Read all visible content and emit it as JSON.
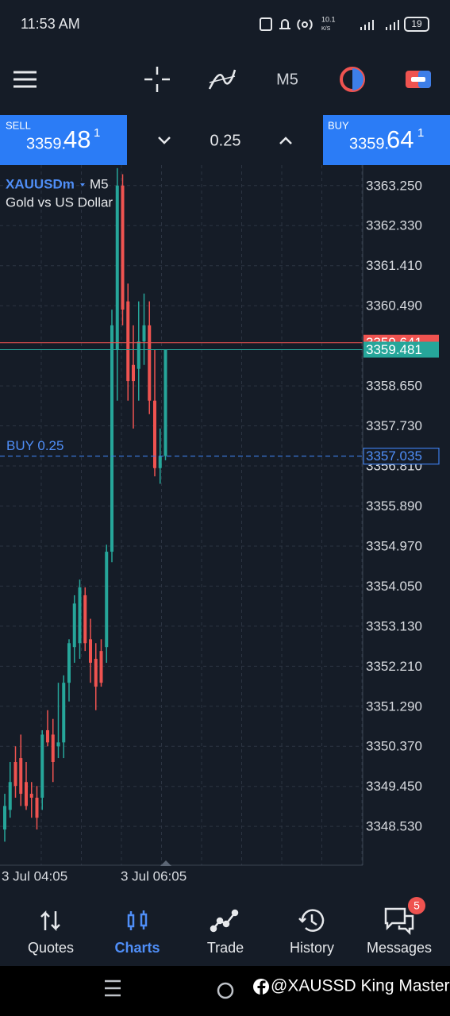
{
  "status_bar": {
    "time": "11:53 AM",
    "speed": "10.1",
    "speed_unit": "K/S",
    "battery": "19"
  },
  "toolbar": {
    "timeframe": "M5"
  },
  "trade_panel": {
    "sell_label": "SELL",
    "sell_price_main": "3359.",
    "sell_price_big": "48",
    "sell_price_sup": "1",
    "volume": "0.25",
    "buy_label": "BUY",
    "buy_price_main": "3359.",
    "buy_price_big": "64",
    "buy_price_sup": "1"
  },
  "chart_data": {
    "type": "candlestick",
    "symbol": "XAUUSDm",
    "timeframe": "M5",
    "description": "Gold vs US Dollar",
    "up_color": "#26a69a",
    "down_color": "#ef5350",
    "candles": [
      [
        3348.46,
        3349.28,
        3348.18,
        3349.0
      ],
      [
        3348.91,
        3350.01,
        3348.73,
        3349.55
      ],
      [
        3350.01,
        3350.37,
        3349.19,
        3349.46
      ],
      [
        3350.1,
        3350.64,
        3349.0,
        3349.28
      ],
      [
        3349.55,
        3350.01,
        3348.91,
        3349.0
      ],
      [
        3349.28,
        3349.55,
        3348.73,
        3349.19
      ],
      [
        3349.19,
        3349.46,
        3348.46,
        3348.73
      ],
      [
        3349.19,
        3350.74,
        3348.91,
        3350.64
      ],
      [
        3350.74,
        3351.2,
        3350.37,
        3350.46
      ],
      [
        3350.64,
        3351.0,
        3349.55,
        3350.01
      ],
      [
        3350.37,
        3351.83,
        3350.1,
        3350.46
      ],
      [
        3350.46,
        3352.0,
        3350.1,
        3351.83
      ],
      [
        3351.83,
        3352.83,
        3351.4,
        3352.74
      ],
      [
        3352.65,
        3353.84,
        3352.29,
        3353.65
      ],
      [
        3352.74,
        3354.2,
        3352.38,
        3354.02
      ],
      [
        3353.84,
        3354.02,
        3352.56,
        3352.74
      ],
      [
        3352.83,
        3353.3,
        3351.83,
        3352.29
      ],
      [
        3352.38,
        3352.74,
        3351.2,
        3351.74
      ],
      [
        3352.56,
        3352.83,
        3351.74,
        3351.83
      ],
      [
        3352.65,
        3355.0,
        3352.29,
        3354.84
      ],
      [
        3354.84,
        3360.4,
        3354.6,
        3360.04
      ],
      [
        3359.49,
        3363.65,
        3358.31,
        3363.25
      ],
      [
        3363.25,
        3363.51,
        3360.04,
        3360.4
      ],
      [
        3360.59,
        3361.0,
        3358.31,
        3358.76
      ],
      [
        3359.13,
        3360.04,
        3357.67,
        3358.76
      ],
      [
        3359.04,
        3360.59,
        3358.31,
        3359.67
      ],
      [
        3359.67,
        3360.77,
        3359.13,
        3360.04
      ],
      [
        3360.04,
        3360.59,
        3358.0,
        3358.31
      ],
      [
        3358.31,
        3359.49,
        3356.57,
        3356.76
      ],
      [
        3356.76,
        3357.67,
        3356.4,
        3357.04
      ],
      [
        3357.04,
        3359.49,
        3356.94,
        3359.48
      ]
    ],
    "ylim": [
      3347.64,
      3363.72
    ],
    "yticks": [
      {
        "value": 3363.25,
        "label": "3363.250"
      },
      {
        "value": 3362.33,
        "label": "3362.330"
      },
      {
        "value": 3361.41,
        "label": "3361.410"
      },
      {
        "value": 3360.49,
        "label": "3360.490"
      },
      {
        "value": 3358.65,
        "label": "3358.650"
      },
      {
        "value": 3357.73,
        "label": "3357.730"
      },
      {
        "value": 3356.81,
        "label": "3356.810"
      },
      {
        "value": 3355.89,
        "label": "3355.890"
      },
      {
        "value": 3354.97,
        "label": "3354.970"
      },
      {
        "value": 3354.05,
        "label": "3354.050"
      },
      {
        "value": 3353.13,
        "label": "3353.130"
      },
      {
        "value": 3352.21,
        "label": "3352.210"
      },
      {
        "value": 3351.29,
        "label": "3351.290"
      },
      {
        "value": 3350.37,
        "label": "3350.370"
      },
      {
        "value": 3349.45,
        "label": "3349.450"
      },
      {
        "value": 3348.53,
        "label": "3348.530"
      }
    ],
    "x_labels": [
      "3 Jul 04:05",
      "3 Jul 06:05"
    ],
    "ask": 3359.641,
    "bid": 3359.481,
    "order": {
      "label": "BUY 0.25",
      "price": 3357.035
    },
    "grid": true
  },
  "nav": [
    "Quotes",
    "Charts",
    "Trade",
    "History",
    "Messages"
  ],
  "messages_badge": "5",
  "watermark": "@XAUSSD King Master"
}
